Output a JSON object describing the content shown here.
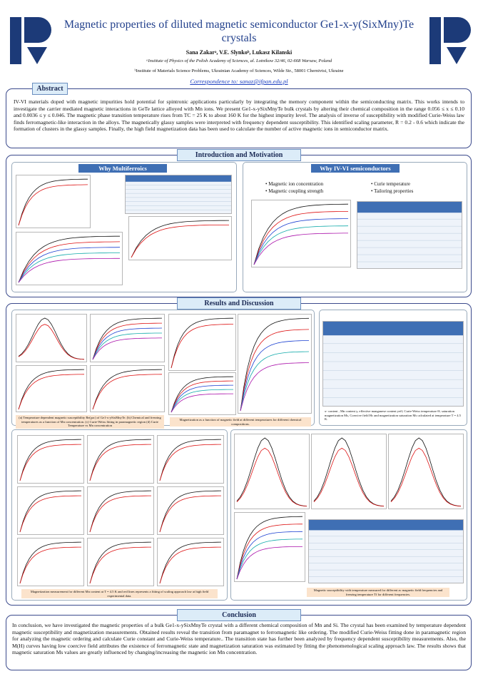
{
  "header": {
    "title": "Magnetic properties of diluted magnetic semiconductor Ge1-x-y(SixMny)Te crystals",
    "authors": "Sana Zakarᵃ, V.E. Slynkoᵇ, Lukasz Kilanski",
    "affiliations": [
      "ᵃInstitute of Physics of the Polish Academy of Sciences, al. Lotnikow 32/46, 02-668 Warsaw, Poland",
      "ᵇInstitute of Materials Science Problems, Ukrainian Academy of Sciences, Wilde Str., 58001 Chernivtsi, Ukraine"
    ],
    "correspondence": "Correspondence to: sanaz@ifpan.edu.pl"
  },
  "abstract": {
    "heading": "Abstract",
    "text": "IV-VI materials doped with magnetic impurities hold potential for spintronic applications particularly by integrating the memory component within the semiconducting matrix. This works intends to investigate the carrier mediated magnetic interactions in GeTe lattice alloyed with Mn ions. We present Ge1-x-ySixMnyTe bulk crystals by altering their chemical composition in the range 0.056 ≤ x ≤ 0.10 and 0.0036 ≤ y ≤ 0.046. The magnetic phase transition temperature rises from TC = 25 K to about 160 K for the highest impurity level. The analysis of inverse of susceptibility with modified Curie-Weiss law finds ferromagnetic-like interaction in the alloys. The magnetically glassy samples were interpreted with frequency dependent susceptibility. This identified scaling parameter, R = 0.2 - 0.6 which indicate the formation of clusters in the glassy samples. Finally, the high field magnetization data has been used to calculate the number of active magnetic ions in semiconductor matrix."
  },
  "intro": {
    "heading": "Introduction and Motivation",
    "panels": [
      {
        "title": "Why Multiferroics"
      },
      {
        "title": "Why IV-VI semiconductors",
        "bullets": [
          "Magnetic ion concentration",
          "Magnetic coupling strength",
          "Curie temperature",
          "Tailoring properties"
        ]
      }
    ]
  },
  "results": {
    "heading": "Results and Discussion",
    "captions": [
      "(a) Temperature dependent magnetic susceptibility Re(χac) of Ge1-x-ySixMnyTe. (b) Chemical and freezing temperatures as a function of Mn concentration. (c) Curie-Weiss fitting in paramagnetic region (d) Curie Temperature vs Mn concentration",
      "Magnetization as a function of magnetic field at different temperatures for different chemical compositions.",
      "x- content , Mn content y, effective manganese content yeff, Curie-Weiss temperature Θ, saturation magnetization Ms, Coercive field Hc and magnetization saturation Ms calculated at temperature T = 4.5 K.",
      "Magnetization measurement for different Mn content at T = 4.5 K and red lines represents a fitting of scaling approach law at high field experimental data.",
      "Magnetic susceptibility with temperature measured for different ac magnetic field frequencies and freezing temperature Tf for different frequencies."
    ]
  },
  "conclusion": {
    "heading": "Conclusion",
    "text": "In conclusion, we have investigated the magnetic properties of a bulk Ge1-x-ySixMnyTe crystal with a different chemical composition of Mn and Si. The crystal has been examined by temperature dependent magnetic susceptibility and magnetization measurements. Obtained results reveal the transition from paramagnet to ferromagnetic like ordering. The modified Curie-Weiss fitting done in paramagnetic region for analyzing the magnetic ordering and calculate Curie constant and Curie-Weiss temperature.. The transition state has further been analyzed by frequency dependent susceptibility measurements. Also, the M(H) curves having low coercive field attributes the existence of ferromagnetic state and magnetization saturation was estimated by fitting the phenomenological scaling approach law. The results shows that magnetic saturation Ms values are greatly influenced by changing/increasing the magnetic ion Mn concentration."
  }
}
